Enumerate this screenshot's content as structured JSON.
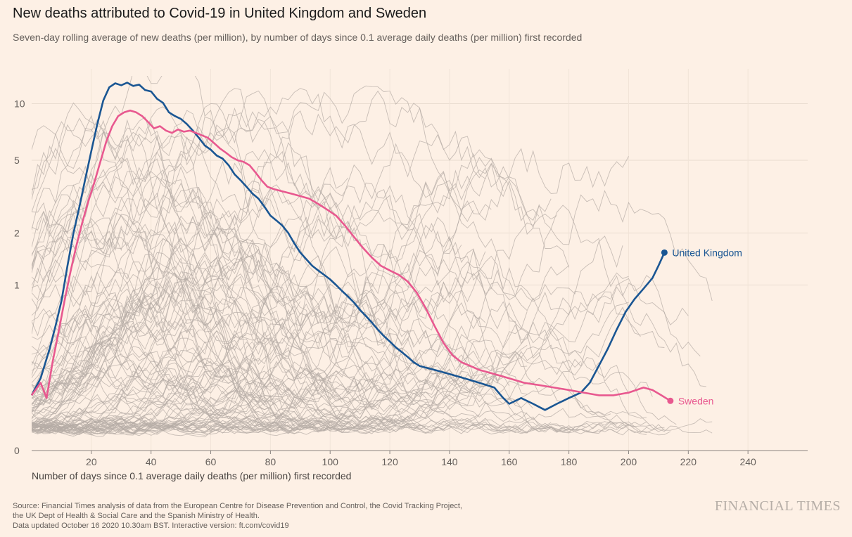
{
  "header": {
    "title": "New deaths attributed to Covid-19 in United Kingdom and Sweden",
    "subtitle": "Seven-day rolling average of new deaths (per million), by number of days since 0.1 average daily deaths (per million) first recorded"
  },
  "footer": {
    "source_lines": [
      "Source: Financial Times analysis of data from the European Centre for Disease Prevention and Control, the Covid Tracking Project,",
      "the UK Dept of Health & Social Care and the Spanish Ministry of Health.",
      "Data updated October 16 2020 10.30am BST. Interactive version: ft.com/covid19"
    ],
    "brand": "FINANCIAL TIMES"
  },
  "colors": {
    "background": "#fdf0e5",
    "uk": "#1a5693",
    "sweden": "#e8588f",
    "other_countries": "#b5aca6",
    "grid": "#e9dcd0"
  },
  "chart_data": {
    "type": "line",
    "scale": "log",
    "title": "New deaths attributed to Covid-19 in United Kingdom and Sweden",
    "xlabel": "Number of days since 0.1 average daily deaths (per million) first recorded",
    "ylabel": "",
    "xlim": [
      0,
      260
    ],
    "ylim": [
      0,
      14
    ],
    "x_ticks": [
      20,
      40,
      60,
      80,
      100,
      120,
      140,
      160,
      180,
      200,
      220,
      240
    ],
    "y_ticks": [
      0,
      1,
      2,
      5,
      10
    ],
    "y_tick_labels": [
      "0",
      "1",
      "2",
      "5",
      "10"
    ],
    "grid": true,
    "background_series_note": "Grey lines: other countries/regions",
    "series": [
      {
        "name": "United Kingdom",
        "color": "#1a5693",
        "points": [
          [
            0,
            0.15
          ],
          [
            3,
            0.22
          ],
          [
            6,
            0.38
          ],
          [
            8,
            0.55
          ],
          [
            10,
            0.8
          ],
          [
            12,
            1.3
          ],
          [
            14,
            2.0
          ],
          [
            16,
            2.8
          ],
          [
            18,
            4.0
          ],
          [
            20,
            5.6
          ],
          [
            22,
            7.8
          ],
          [
            24,
            10.4
          ],
          [
            26,
            12.2
          ],
          [
            28,
            12.8
          ],
          [
            30,
            12.5
          ],
          [
            32,
            12.9
          ],
          [
            34,
            12.4
          ],
          [
            36,
            12.6
          ],
          [
            38,
            11.8
          ],
          [
            40,
            11.6
          ],
          [
            42,
            10.6
          ],
          [
            44,
            10.1
          ],
          [
            46,
            9.0
          ],
          [
            48,
            8.6
          ],
          [
            50,
            8.3
          ],
          [
            52,
            7.8
          ],
          [
            54,
            7.2
          ],
          [
            56,
            6.6
          ],
          [
            58,
            6.0
          ],
          [
            60,
            5.7
          ],
          [
            62,
            5.3
          ],
          [
            64,
            5.1
          ],
          [
            66,
            4.7
          ],
          [
            68,
            4.2
          ],
          [
            70,
            3.9
          ],
          [
            72,
            3.6
          ],
          [
            74,
            3.3
          ],
          [
            76,
            3.1
          ],
          [
            78,
            2.8
          ],
          [
            80,
            2.5
          ],
          [
            82,
            2.35
          ],
          [
            84,
            2.2
          ],
          [
            86,
            2.0
          ],
          [
            88,
            1.75
          ],
          [
            90,
            1.55
          ],
          [
            92,
            1.42
          ],
          [
            94,
            1.3
          ],
          [
            96,
            1.22
          ],
          [
            98,
            1.15
          ],
          [
            100,
            1.08
          ],
          [
            102,
            1.0
          ],
          [
            104,
            0.92
          ],
          [
            106,
            0.85
          ],
          [
            108,
            0.78
          ],
          [
            110,
            0.7
          ],
          [
            112,
            0.64
          ],
          [
            114,
            0.58
          ],
          [
            116,
            0.52
          ],
          [
            118,
            0.47
          ],
          [
            120,
            0.43
          ],
          [
            122,
            0.39
          ],
          [
            124,
            0.36
          ],
          [
            126,
            0.33
          ],
          [
            128,
            0.3
          ],
          [
            130,
            0.28
          ],
          [
            135,
            0.26
          ],
          [
            140,
            0.24
          ],
          [
            145,
            0.22
          ],
          [
            150,
            0.2
          ],
          [
            155,
            0.18
          ],
          [
            158,
            0.14
          ],
          [
            160,
            0.12
          ],
          [
            164,
            0.14
          ],
          [
            168,
            0.12
          ],
          [
            172,
            0.1
          ],
          [
            176,
            0.12
          ],
          [
            180,
            0.14
          ],
          [
            184,
            0.16
          ],
          [
            187,
            0.2
          ],
          [
            190,
            0.28
          ],
          [
            193,
            0.38
          ],
          [
            196,
            0.52
          ],
          [
            199,
            0.68
          ],
          [
            202,
            0.82
          ],
          [
            205,
            0.95
          ],
          [
            208,
            1.1
          ],
          [
            210,
            1.3
          ],
          [
            212,
            1.55
          ]
        ]
      },
      {
        "name": "Sweden",
        "color": "#e8588f",
        "points": [
          [
            0,
            0.15
          ],
          [
            3,
            0.2
          ],
          [
            5,
            0.14
          ],
          [
            7,
            0.3
          ],
          [
            9,
            0.5
          ],
          [
            11,
            0.8
          ],
          [
            13,
            1.2
          ],
          [
            15,
            1.7
          ],
          [
            17,
            2.3
          ],
          [
            19,
            3.0
          ],
          [
            21,
            3.8
          ],
          [
            23,
            4.9
          ],
          [
            25,
            6.3
          ],
          [
            27,
            7.6
          ],
          [
            29,
            8.6
          ],
          [
            31,
            9.0
          ],
          [
            33,
            9.2
          ],
          [
            35,
            9.0
          ],
          [
            37,
            8.6
          ],
          [
            39,
            8.0
          ],
          [
            41,
            7.4
          ],
          [
            43,
            7.6
          ],
          [
            45,
            7.2
          ],
          [
            47,
            7.0
          ],
          [
            49,
            7.3
          ],
          [
            51,
            7.1
          ],
          [
            53,
            7.2
          ],
          [
            55,
            7.0
          ],
          [
            57,
            6.8
          ],
          [
            59,
            6.6
          ],
          [
            61,
            6.2
          ],
          [
            63,
            5.8
          ],
          [
            65,
            5.5
          ],
          [
            67,
            5.2
          ],
          [
            69,
            5.0
          ],
          [
            71,
            4.9
          ],
          [
            73,
            4.7
          ],
          [
            75,
            4.3
          ],
          [
            77,
            3.9
          ],
          [
            79,
            3.6
          ],
          [
            81,
            3.5
          ],
          [
            84,
            3.4
          ],
          [
            87,
            3.3
          ],
          [
            90,
            3.2
          ],
          [
            93,
            3.1
          ],
          [
            96,
            2.9
          ],
          [
            99,
            2.7
          ],
          [
            102,
            2.5
          ],
          [
            105,
            2.2
          ],
          [
            108,
            1.9
          ],
          [
            111,
            1.65
          ],
          [
            114,
            1.45
          ],
          [
            117,
            1.3
          ],
          [
            120,
            1.22
          ],
          [
            123,
            1.15
          ],
          [
            126,
            1.05
          ],
          [
            129,
            0.9
          ],
          [
            132,
            0.72
          ],
          [
            135,
            0.55
          ],
          [
            138,
            0.42
          ],
          [
            141,
            0.34
          ],
          [
            144,
            0.3
          ],
          [
            147,
            0.28
          ],
          [
            150,
            0.26
          ],
          [
            155,
            0.24
          ],
          [
            160,
            0.22
          ],
          [
            165,
            0.2
          ],
          [
            170,
            0.19
          ],
          [
            175,
            0.18
          ],
          [
            180,
            0.17
          ],
          [
            185,
            0.16
          ],
          [
            190,
            0.15
          ],
          [
            195,
            0.15
          ],
          [
            200,
            0.16
          ],
          [
            205,
            0.18
          ],
          [
            208,
            0.17
          ],
          [
            211,
            0.15
          ],
          [
            214,
            0.13
          ]
        ]
      }
    ],
    "end_labels": {
      "uk": "United Kingdom",
      "sweden": "Sweden"
    }
  }
}
